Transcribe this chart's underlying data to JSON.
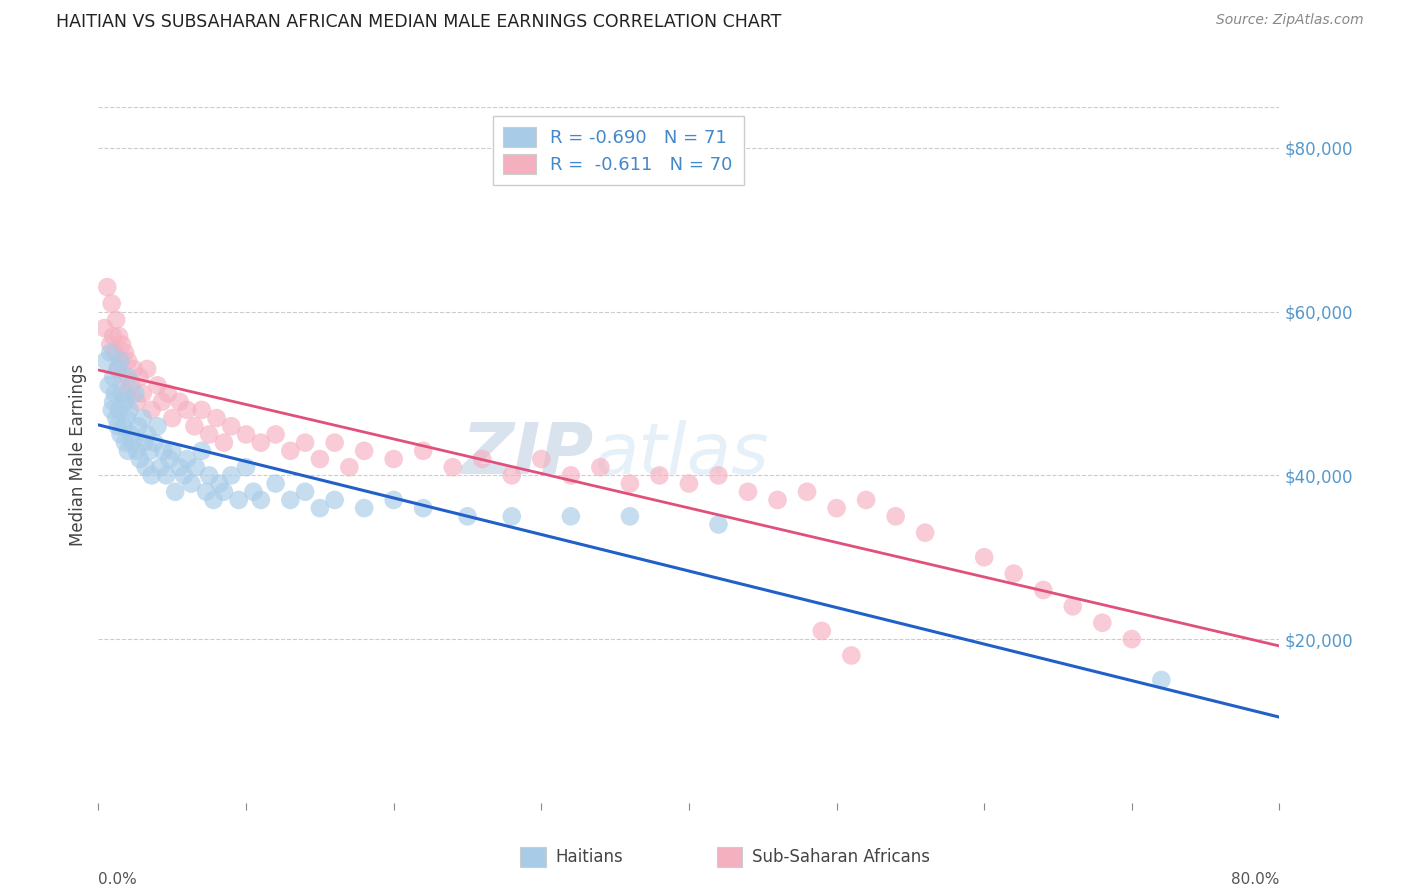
{
  "title": "HAITIAN VS SUBSAHARAN AFRICAN MEDIAN MALE EARNINGS CORRELATION CHART",
  "source": "Source: ZipAtlas.com",
  "ylabel": "Median Male Earnings",
  "right_ytick_labels": [
    "$80,000",
    "$60,000",
    "$40,000",
    "$20,000"
  ],
  "right_ytick_values": [
    80000,
    60000,
    40000,
    20000
  ],
  "legend_label1": "Haitians",
  "legend_label2": "Sub-Saharan Africans",
  "r1": -0.69,
  "n1": 71,
  "r2": -0.611,
  "n2": 70,
  "color1": "#a8cce8",
  "color2": "#f5b0c0",
  "line_color1": "#2060c8",
  "line_color2": "#e0507a",
  "watermark": "ZIPatlas",
  "watermark_color": "#ccddf0",
  "xmin": 0.0,
  "xmax": 0.8,
  "ymin": 0,
  "ymax": 85000,
  "haitians_x": [
    0.005,
    0.007,
    0.008,
    0.009,
    0.01,
    0.01,
    0.011,
    0.012,
    0.013,
    0.013,
    0.014,
    0.015,
    0.015,
    0.016,
    0.017,
    0.018,
    0.018,
    0.019,
    0.02,
    0.02,
    0.021,
    0.022,
    0.023,
    0.025,
    0.026,
    0.027,
    0.028,
    0.03,
    0.031,
    0.032,
    0.033,
    0.035,
    0.036,
    0.038,
    0.04,
    0.042,
    0.044,
    0.046,
    0.048,
    0.05,
    0.052,
    0.055,
    0.058,
    0.06,
    0.063,
    0.066,
    0.07,
    0.073,
    0.075,
    0.078,
    0.082,
    0.085,
    0.09,
    0.095,
    0.1,
    0.105,
    0.11,
    0.12,
    0.13,
    0.14,
    0.15,
    0.16,
    0.18,
    0.2,
    0.22,
    0.25,
    0.28,
    0.32,
    0.36,
    0.42,
    0.72
  ],
  "haitians_y": [
    54000,
    51000,
    55000,
    48000,
    52000,
    49000,
    50000,
    47000,
    53000,
    46000,
    48000,
    54000,
    45000,
    50000,
    46000,
    49000,
    44000,
    47000,
    52000,
    43000,
    48000,
    45000,
    44000,
    50000,
    43000,
    46000,
    42000,
    47000,
    44000,
    41000,
    45000,
    43000,
    40000,
    44000,
    46000,
    41000,
    43000,
    40000,
    42000,
    43000,
    38000,
    41000,
    40000,
    42000,
    39000,
    41000,
    43000,
    38000,
    40000,
    37000,
    39000,
    38000,
    40000,
    37000,
    41000,
    38000,
    37000,
    39000,
    37000,
    38000,
    36000,
    37000,
    36000,
    37000,
    36000,
    35000,
    35000,
    35000,
    35000,
    34000,
    15000
  ],
  "subsaharan_x": [
    0.004,
    0.006,
    0.008,
    0.009,
    0.01,
    0.011,
    0.012,
    0.013,
    0.014,
    0.015,
    0.016,
    0.017,
    0.018,
    0.019,
    0.02,
    0.022,
    0.024,
    0.026,
    0.028,
    0.03,
    0.033,
    0.036,
    0.04,
    0.043,
    0.047,
    0.05,
    0.055,
    0.06,
    0.065,
    0.07,
    0.075,
    0.08,
    0.085,
    0.09,
    0.1,
    0.11,
    0.12,
    0.13,
    0.14,
    0.15,
    0.16,
    0.17,
    0.18,
    0.2,
    0.22,
    0.24,
    0.26,
    0.28,
    0.3,
    0.32,
    0.34,
    0.36,
    0.38,
    0.4,
    0.42,
    0.44,
    0.46,
    0.48,
    0.5,
    0.52,
    0.54,
    0.56,
    0.6,
    0.62,
    0.64,
    0.66,
    0.68,
    0.7,
    0.49,
    0.51
  ],
  "subsaharan_y": [
    58000,
    63000,
    56000,
    61000,
    57000,
    55000,
    59000,
    53000,
    57000,
    54000,
    56000,
    52000,
    55000,
    50000,
    54000,
    51000,
    53000,
    49000,
    52000,
    50000,
    53000,
    48000,
    51000,
    49000,
    50000,
    47000,
    49000,
    48000,
    46000,
    48000,
    45000,
    47000,
    44000,
    46000,
    45000,
    44000,
    45000,
    43000,
    44000,
    42000,
    44000,
    41000,
    43000,
    42000,
    43000,
    41000,
    42000,
    40000,
    42000,
    40000,
    41000,
    39000,
    40000,
    39000,
    40000,
    38000,
    37000,
    38000,
    36000,
    37000,
    35000,
    33000,
    30000,
    28000,
    26000,
    24000,
    22000,
    20000,
    21000,
    18000
  ]
}
